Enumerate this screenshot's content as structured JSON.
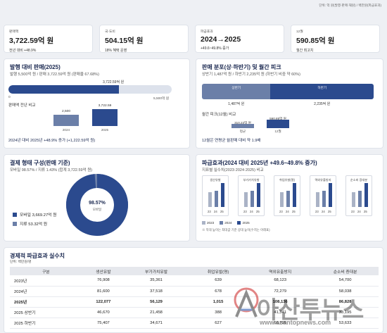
{
  "unit_note": "단위: 억 원(발행·판매·재원) / 백만원(파급효과)",
  "kpis": [
    {
      "label": "판매액",
      "value": "3,722.59억 원",
      "sub": "전년 대비 +48.9%"
    },
    {
      "label": "국·도비",
      "value": "504.15억 원",
      "sub": "18% 혜택 운영"
    },
    {
      "label": "파급효과",
      "value": "2024→2025",
      "sub": "+49.6~49.8% 증가"
    },
    {
      "label": "12월",
      "value": "590.85억 원",
      "sub": "월간 최고치"
    }
  ],
  "issue": {
    "title": "발행 대비 판매(2025)",
    "subtitle": "발행 5,500억 원 / 판매 3,722.59억 원 (판매율 67.68%)",
    "bar_label": "3,722.59억 원",
    "bar_fraction": 0.6768,
    "axis_min": "0",
    "axis_max": "5,500억 원",
    "compare_title": "판매액 전년 비교",
    "compare_bars": [
      {
        "year": "2024",
        "value": 2500,
        "label": "2,500"
      },
      {
        "year": "2025",
        "value": 3722.59,
        "label": "3,722.59"
      }
    ],
    "footer": "2024년 대비 2025년 +48.9% 증가 (+1,222.59억 원)"
  },
  "dist": {
    "title": "판매 분포(상·하반기) 및 월간 피크",
    "subtitle": "상반기 1,487억 원 / 하반기 2,235억 원 (하반기 비중 약 60%)",
    "halves": [
      {
        "label": "상반기",
        "value": "1,487억 원",
        "amount": 1487
      },
      {
        "label": "하반기",
        "value": "2,235억 원",
        "amount": 2235
      }
    ],
    "peak_title": "월간 피크(12월) 비교",
    "peak_bars": [
      {
        "label": "평균",
        "value": "310.22억 원",
        "amount": 310.22
      },
      {
        "label": "12월",
        "value": "590.85억 원",
        "amount": 590.85
      }
    ],
    "footer": "12월은 연평균 월판매 대비 약 1.9배"
  },
  "payment": {
    "title": "결제 형태 구성(판매 기준)",
    "subtitle": "모바일 98.57% / 지류 1.43% (합계 3,722.59억 원)",
    "center_value": "98.57%",
    "center_label": "모바일",
    "mobile_share": 0.9857,
    "legend": [
      {
        "label": "모바일 3,669.27억 원",
        "color": "#2b4a8e"
      },
      {
        "label": "지류 53.32억 원",
        "color": "#6b7fa8"
      }
    ]
  },
  "effect": {
    "title": "파급효과(2024 대비 2025년 +49.6~49.8% 증가)",
    "subtitle": "지표별 실수치(2023·2024·2025) 비교",
    "mini_charts": [
      {
        "name": "생산유발",
        "values": [
          76908,
          81600,
          122077
        ]
      },
      {
        "name": "부가가치유발",
        "values": [
          35361,
          37518,
          56129
        ]
      },
      {
        "name": "취업유발(명)",
        "values": [
          639,
          678,
          1015
        ]
      },
      {
        "name": "역외유출방지",
        "values": [
          68123,
          72279,
          108136
        ]
      },
      {
        "name": "순소비 증대분",
        "values": [
          54700,
          58038,
          86828
        ]
      }
    ],
    "x_labels": [
      "23",
      "24",
      "25"
    ],
    "legend": [
      {
        "label": "2023",
        "color": "#aab3c6"
      },
      {
        "label": "2024",
        "color": "#6b7fa8"
      },
      {
        "label": "2025",
        "color": "#2b4a8e"
      }
    ],
    "note": "※ 막대 높이는 최대값 기준 상대 높이(수치는 아래표)"
  },
  "table": {
    "title": "경제적 파급효과 실수치",
    "unit": "단위: 백만원/명",
    "headers": [
      "구분",
      "생산유발",
      "부가가치유발",
      "취업유발(명)",
      "역외유출방지",
      "순소비 증대분"
    ],
    "rows": [
      [
        "2023년",
        "76,908",
        "35,361",
        "639",
        "68,123",
        "54,700"
      ],
      [
        "2024년",
        "81,600",
        "37,518",
        "678",
        "72,279",
        "58,038"
      ],
      [
        "2025년",
        "122,077",
        "56,129",
        "1,015",
        "108,136",
        "86,828"
      ],
      [
        "2025 상반기",
        "46,670",
        "21,458",
        "388",
        "41,341",
        "33,195"
      ],
      [
        "2025 하반기",
        "75,407",
        "34,671",
        "627",
        "66,795",
        "53,633"
      ]
    ]
  },
  "watermark": {
    "text": "아산투뉴스",
    "url": "www.asantopnews.com"
  }
}
